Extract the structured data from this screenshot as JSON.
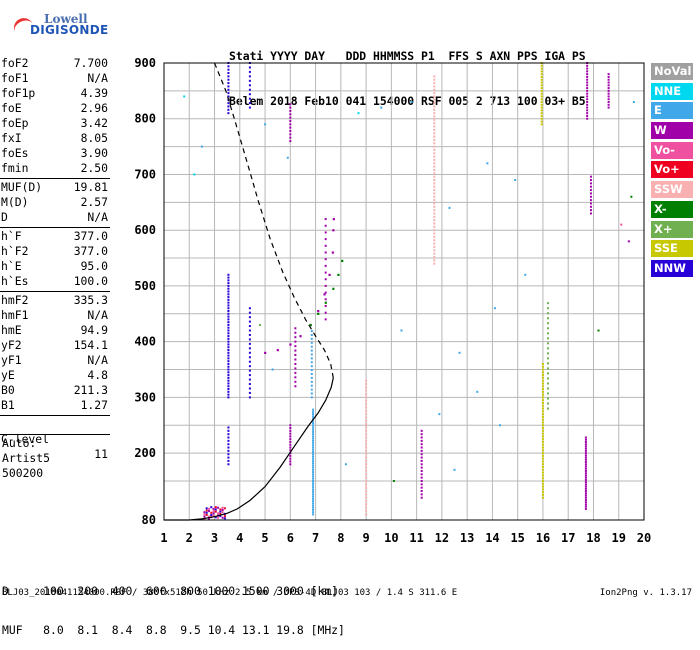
{
  "logo": {
    "top": "Lowell",
    "bottom": "DIGISONDE"
  },
  "header": {
    "line1": "Stati YYYY DAY   DDD HHMMSS P1  FFS S AXN PPS IGA PS",
    "line2": "Belem 2018 Feb10 041 154000 RSF 005 2 713 100 03+ B5"
  },
  "params": {
    "group1": [
      {
        "label": "foF2",
        "value": "7.700"
      },
      {
        "label": "foF1",
        "value": "N/A"
      },
      {
        "label": "foF1p",
        "value": "4.39"
      },
      {
        "label": "foE",
        "value": "2.96"
      },
      {
        "label": "foEp",
        "value": "3.42"
      },
      {
        "label": "fxI",
        "value": "8.05"
      },
      {
        "label": "foEs",
        "value": "3.90"
      },
      {
        "label": "fmin",
        "value": "2.50"
      }
    ],
    "group2": [
      {
        "label": "MUF(D)",
        "value": "19.81"
      },
      {
        "label": "M(D)",
        "value": "2.57"
      },
      {
        "label": "D",
        "value": "N/A"
      }
    ],
    "group3": [
      {
        "label": "h`F",
        "value": "377.0"
      },
      {
        "label": "h`F2",
        "value": "377.0"
      },
      {
        "label": "h`E",
        "value": "95.0"
      },
      {
        "label": "h`Es",
        "value": "100.0"
      }
    ],
    "group4": [
      {
        "label": "hmF2",
        "value": "335.3"
      },
      {
        "label": "hmF1",
        "value": "N/A"
      },
      {
        "label": "hmE",
        "value": "94.9"
      },
      {
        "label": "yF2",
        "value": "154.1"
      },
      {
        "label": "yF1",
        "value": "N/A"
      },
      {
        "label": "yE",
        "value": "4.8"
      },
      {
        "label": "B0",
        "value": "211.3"
      },
      {
        "label": "B1",
        "value": "1.27"
      }
    ],
    "clevel": {
      "label": "C-level",
      "value": "11"
    },
    "auto": [
      "Auto:",
      "Artist5",
      "500200"
    ]
  },
  "legend": [
    {
      "label": "NoVal",
      "color": "#a0a0a0"
    },
    {
      "label": "NNE",
      "color": "#00d8f0"
    },
    {
      "label": "E",
      "color": "#40a8e8"
    },
    {
      "label": "W",
      "color": "#a000a8"
    },
    {
      "label": "Vo-",
      "color": "#f050a0"
    },
    {
      "label": "Vo+",
      "color": "#f00020"
    },
    {
      "label": "SSW",
      "color": "#f8b0b0"
    },
    {
      "label": "X-",
      "color": "#008000"
    },
    {
      "label": "X+",
      "color": "#70b050"
    },
    {
      "label": "SSE",
      "color": "#c8c800"
    },
    {
      "label": "NNW",
      "color": "#2800d8"
    }
  ],
  "chart_data": {
    "type": "scatter",
    "xlim": [
      1,
      20
    ],
    "ylim": [
      80,
      900
    ],
    "xticks": [
      "1",
      "2",
      "3",
      "4",
      "5",
      "6",
      "7",
      "8",
      "9",
      "10",
      "11",
      "12",
      "13",
      "14",
      "15",
      "16",
      "17",
      "18",
      "19",
      "20"
    ],
    "yticks": [
      "80",
      "200",
      "300",
      "400",
      "500",
      "600",
      "700",
      "800",
      "900"
    ],
    "grid": true,
    "profile_solid": [
      [
        1.0,
        80
      ],
      [
        2.0,
        80
      ],
      [
        2.5,
        82
      ],
      [
        3.0,
        86
      ],
      [
        3.5,
        92
      ],
      [
        3.9,
        100
      ],
      [
        4.4,
        115
      ],
      [
        5.0,
        140
      ],
      [
        5.6,
        175
      ],
      [
        6.2,
        215
      ],
      [
        6.7,
        248
      ],
      [
        7.1,
        272
      ],
      [
        7.4,
        295
      ],
      [
        7.62,
        318
      ],
      [
        7.7,
        335
      ]
    ],
    "profile_dashed": [
      [
        7.7,
        335
      ],
      [
        7.6,
        360
      ],
      [
        7.35,
        385
      ],
      [
        7.0,
        410
      ],
      [
        6.6,
        440
      ],
      [
        6.15,
        480
      ],
      [
        5.7,
        525
      ],
      [
        5.2,
        585
      ],
      [
        4.75,
        650
      ],
      [
        4.3,
        720
      ],
      [
        3.85,
        790
      ],
      [
        3.45,
        850
      ],
      [
        3.0,
        900
      ]
    ],
    "trace_ordinary": [
      [
        5.0,
        380
      ],
      [
        5.5,
        385
      ],
      [
        6.0,
        395
      ],
      [
        6.4,
        410
      ],
      [
        6.8,
        430
      ],
      [
        7.1,
        455
      ],
      [
        7.35,
        485
      ],
      [
        7.55,
        520
      ],
      [
        7.68,
        560
      ],
      [
        7.7,
        600
      ],
      [
        7.72,
        620
      ]
    ],
    "trace_extraordinary": [
      [
        6.8,
        430
      ],
      [
        7.1,
        450
      ],
      [
        7.4,
        470
      ],
      [
        7.7,
        495
      ],
      [
        7.9,
        520
      ],
      [
        8.05,
        545
      ]
    ],
    "ionogram_points": [
      {
        "set": "E",
        "freq": 3.3,
        "h": [
          820,
          880
        ],
        "color": "#40a8e8"
      }
    ]
  },
  "bottom": {
    "d_line": "D     100  200  400  600  800 1000 1500 3000 [km]",
    "muf_line": "MUF   8.0  8.1  8.4  8.8  9.5 10.4 13.1 19.8 [MHz]"
  },
  "footer": {
    "left": "BLJ03_2018041154000.RSF / 380fx512h 50 kHz 2.5 km / DPS-4D BLJ03 103 / 1.4 S 311.6 E",
    "right": "Ion2Png v. 1.3.17"
  }
}
